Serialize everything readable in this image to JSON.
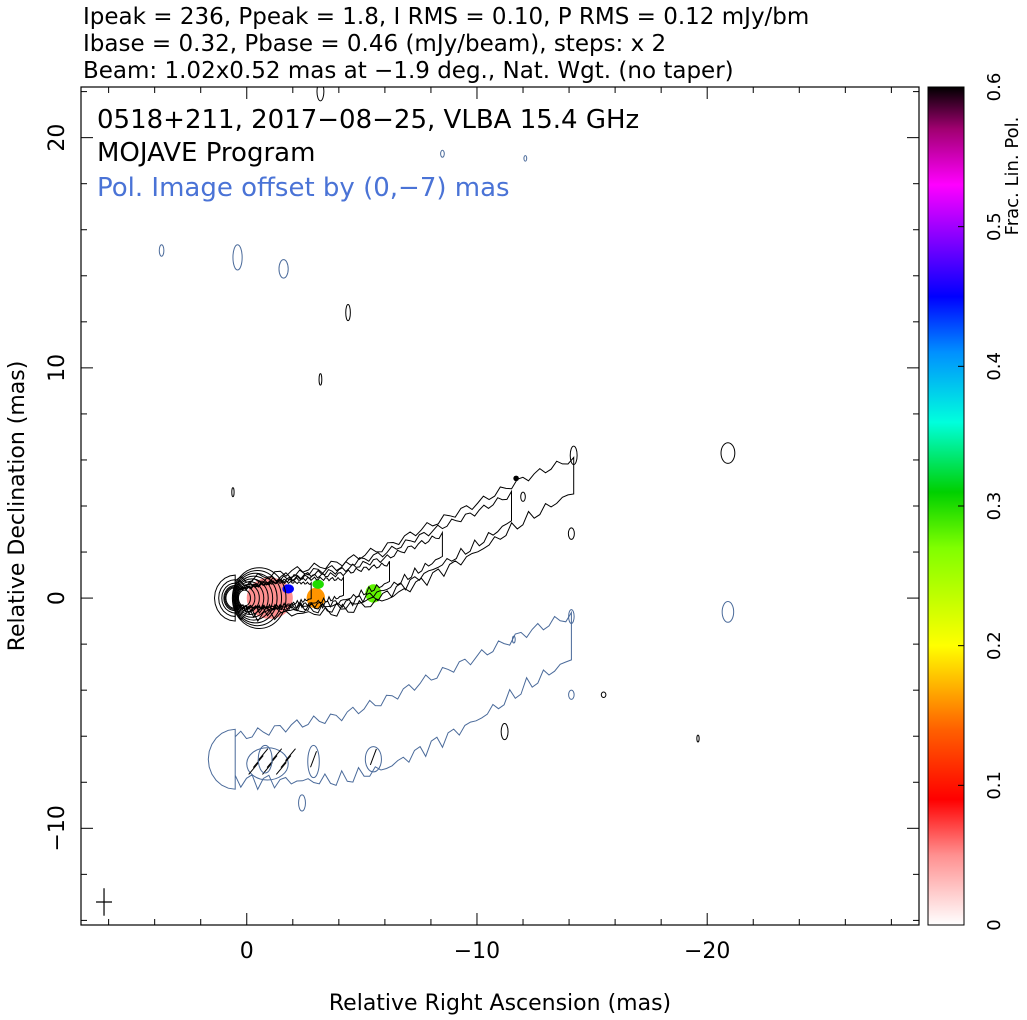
{
  "header": {
    "line1": "Ipeak = 236, Ppeak = 1.8, I RMS = 0.10, P RMS = 0.12 mJy/bm",
    "line2": "Ibase = 0.32, Pbase = 0.46 (mJy/beam), steps: x 2",
    "line3": "Beam: 1.02x0.52 mas at −1.9 deg., Nat. Wgt. (no taper)"
  },
  "annotations": {
    "source": "0518+211, 2017−08−25, VLBA 15.4 GHz",
    "program": "MOJAVE Program",
    "pol_offset": "Pol. Image offset by (0,−7) mas",
    "pol_offset_color": "#4a73d6"
  },
  "colors": {
    "stokes_i_contours": "#000000",
    "pol_contours": "#4a6a9a"
  },
  "chart_data": {
    "type": "heatmap",
    "xlabel": "Relative Right Ascension (mas)",
    "ylabel": "Relative Declination (mas)",
    "xlim": [
      7.2,
      -29.2
    ],
    "ylim": [
      -14.2,
      22.2
    ],
    "x_axis_reversed": true,
    "x_ticks": [
      0,
      -10,
      -20
    ],
    "x_tick_labels": [
      "0",
      "−10",
      "−20"
    ],
    "y_ticks": [
      -10,
      0,
      10,
      20
    ],
    "y_tick_labels": [
      "−10",
      "0",
      "10",
      "20"
    ],
    "core_position_mas": [
      0,
      0
    ],
    "jet_ridge_mas": [
      [
        0,
        0
      ],
      [
        -2,
        0.2
      ],
      [
        -4,
        0.4
      ],
      [
        -6,
        1.0
      ],
      [
        -8,
        2.0
      ],
      [
        -10,
        3.0
      ],
      [
        -12,
        4.2
      ],
      [
        -14,
        5.2
      ]
    ],
    "fractional_polarization_features": [
      {
        "ra": -1.0,
        "dec": 0.0,
        "frac_pol": 0.05
      },
      {
        "ra": -1.8,
        "dec": 0.4,
        "frac_pol": 0.45
      },
      {
        "ra": -3.0,
        "dec": 0.0,
        "frac_pol": 0.16
      },
      {
        "ra": -3.1,
        "dec": 0.6,
        "frac_pol": 0.3
      },
      {
        "ra": -5.5,
        "dec": 0.2,
        "frac_pol": 0.28
      },
      {
        "ra": -11.7,
        "dec": 5.2,
        "frac_pol": 0.6
      }
    ],
    "colorbar": {
      "label": "Frac. Lin. Pol.",
      "range": [
        0,
        0.6
      ],
      "ticks": [
        0,
        0.1,
        0.2,
        0.3,
        0.4,
        0.5,
        0.6
      ],
      "tick_labels": [
        "0",
        "0.1",
        "0.2",
        "0.3",
        "0.4",
        "0.5",
        "0.6"
      ],
      "stops": [
        {
          "v": 0.0,
          "color": "#ffffff"
        },
        {
          "v": 0.05,
          "color": "#ff9090"
        },
        {
          "v": 0.09,
          "color": "#ff0000"
        },
        {
          "v": 0.14,
          "color": "#ff6000"
        },
        {
          "v": 0.2,
          "color": "#ffff00"
        },
        {
          "v": 0.27,
          "color": "#80ff00"
        },
        {
          "v": 0.31,
          "color": "#00d000"
        },
        {
          "v": 0.36,
          "color": "#00ffdd"
        },
        {
          "v": 0.41,
          "color": "#0090ff"
        },
        {
          "v": 0.45,
          "color": "#0000ff"
        },
        {
          "v": 0.49,
          "color": "#8000ff"
        },
        {
          "v": 0.53,
          "color": "#ff00ff"
        },
        {
          "v": 0.57,
          "color": "#a00070"
        },
        {
          "v": 0.6,
          "color": "#000000"
        }
      ]
    },
    "beam_marker": {
      "ra": 6.2,
      "dec": -13.2,
      "major_mas": 1.02,
      "minor_mas": 0.52,
      "pa_deg": -1.9
    }
  }
}
